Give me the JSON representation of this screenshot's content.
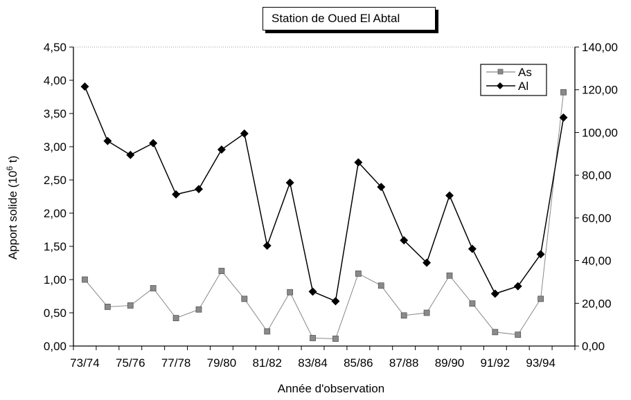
{
  "chart_data": {
    "type": "line",
    "title": "Station de Oued El Abtal",
    "xlabel": "Année d'observation",
    "ylabel_left": "Apport solide (10",
    "ylabel_left_sup": "6",
    "ylabel_left_unit": " t)",
    "ylabel_right": "",
    "categories": [
      "73/74",
      "74/75",
      "75/76",
      "76/77",
      "77/78",
      "78/79",
      "79/80",
      "80/81",
      "81/82",
      "82/83",
      "83/84",
      "84/85",
      "85/86",
      "86/87",
      "87/88",
      "88/89",
      "89/90",
      "90/91",
      "91/92",
      "92/93",
      "93/94",
      "94/95"
    ],
    "xtick_labels": [
      "73/74",
      "75/76",
      "77/78",
      "79/80",
      "81/82",
      "83/84",
      "85/86",
      "87/88",
      "89/90",
      "91/92",
      "93/94"
    ],
    "left_axis": {
      "ylim": [
        0,
        4.5
      ],
      "ticks": [
        "0,00",
        "0,50",
        "1,00",
        "1,50",
        "2,00",
        "2,50",
        "3,00",
        "3,50",
        "4,00",
        "4,50"
      ]
    },
    "right_axis": {
      "ylim": [
        0,
        140
      ],
      "ticks": [
        "0,00",
        "20,00",
        "40,00",
        "60,00",
        "80,00",
        "100,00",
        "120,00",
        "140,00"
      ]
    },
    "series": [
      {
        "name": "As",
        "axis": "left",
        "marker": "square",
        "color": "#888888",
        "values": [
          1.0,
          0.59,
          0.61,
          0.87,
          0.42,
          0.55,
          1.13,
          0.71,
          0.22,
          0.81,
          0.12,
          0.11,
          1.09,
          0.91,
          0.46,
          0.5,
          1.06,
          0.64,
          0.21,
          0.17,
          0.71,
          3.82
        ]
      },
      {
        "name": "Al",
        "axis": "right",
        "marker": "diamond",
        "color": "#000000",
        "values": [
          121.5,
          96,
          89.5,
          95,
          71,
          73.5,
          92,
          99.5,
          47,
          76.5,
          25.5,
          21,
          86,
          74.5,
          49.5,
          39,
          70.5,
          45.5,
          24.5,
          28,
          43,
          107
        ]
      }
    ],
    "legend_position": "top-right",
    "grid": false
  }
}
